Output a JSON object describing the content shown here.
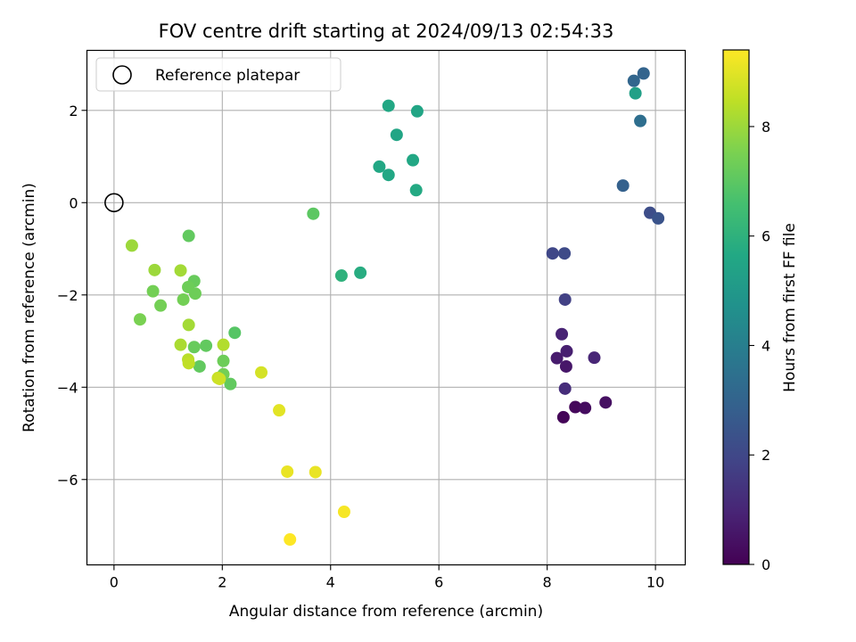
{
  "chart_data": {
    "type": "scatter",
    "title": "FOV centre drift starting at 2024/09/13 02:54:33",
    "xlabel": "Angular distance from reference (arcmin)",
    "ylabel": "Rotation from reference (arcmin)",
    "xlim": [
      -0.5,
      10.55
    ],
    "ylim": [
      -7.85,
      3.3
    ],
    "xticks": [
      0,
      2,
      4,
      6,
      8,
      10
    ],
    "yticks": [
      -6,
      -4,
      -2,
      0,
      2
    ],
    "grid": true,
    "legend": {
      "position": "top-left",
      "entries": [
        "Reference platepar"
      ]
    },
    "reference_point": {
      "x": 0,
      "y": 0,
      "label": "Reference platepar"
    },
    "colorbar": {
      "label": "Hours from first FF file",
      "range": [
        0,
        9.4
      ],
      "ticks": [
        0,
        2,
        4,
        6,
        8
      ],
      "colormap": "viridis"
    },
    "points": [
      {
        "x": 8.3,
        "y": -4.65,
        "h": 0.1
      },
      {
        "x": 8.52,
        "y": -4.43,
        "h": 0.2
      },
      {
        "x": 8.7,
        "y": -4.45,
        "h": 0.3
      },
      {
        "x": 9.08,
        "y": -4.33,
        "h": 0.4
      },
      {
        "x": 8.33,
        "y": -4.03,
        "h": 1.2
      },
      {
        "x": 8.35,
        "y": -3.55,
        "h": 0.6
      },
      {
        "x": 8.18,
        "y": -3.37,
        "h": 0.7
      },
      {
        "x": 8.36,
        "y": -3.22,
        "h": 0.8
      },
      {
        "x": 8.27,
        "y": -2.85,
        "h": 0.9
      },
      {
        "x": 8.87,
        "y": -3.36,
        "h": 1.0
      },
      {
        "x": 8.33,
        "y": -2.1,
        "h": 1.8
      },
      {
        "x": 8.1,
        "y": -1.1,
        "h": 2.0
      },
      {
        "x": 8.32,
        "y": -1.1,
        "h": 2.1
      },
      {
        "x": 9.9,
        "y": -0.22,
        "h": 2.2
      },
      {
        "x": 10.05,
        "y": -0.34,
        "h": 2.4
      },
      {
        "x": 9.4,
        "y": 0.37,
        "h": 2.9
      },
      {
        "x": 9.72,
        "y": 1.77,
        "h": 3.4
      },
      {
        "x": 9.6,
        "y": 2.64,
        "h": 3.1
      },
      {
        "x": 9.78,
        "y": 2.8,
        "h": 3.0
      },
      {
        "x": 9.63,
        "y": 2.37,
        "h": 5.3
      },
      {
        "x": 5.6,
        "y": 1.98,
        "h": 5.5
      },
      {
        "x": 5.07,
        "y": 2.1,
        "h": 5.6
      },
      {
        "x": 5.22,
        "y": 1.47,
        "h": 5.5
      },
      {
        "x": 4.9,
        "y": 0.78,
        "h": 5.6
      },
      {
        "x": 5.07,
        "y": 0.6,
        "h": 5.6
      },
      {
        "x": 5.52,
        "y": 0.92,
        "h": 5.6
      },
      {
        "x": 5.58,
        "y": 0.27,
        "h": 5.7
      },
      {
        "x": 4.55,
        "y": -1.52,
        "h": 5.8
      },
      {
        "x": 4.2,
        "y": -1.58,
        "h": 6.0
      },
      {
        "x": 3.68,
        "y": -0.24,
        "h": 7.0
      },
      {
        "x": 1.38,
        "y": -0.72,
        "h": 7.1
      },
      {
        "x": 1.48,
        "y": -1.7,
        "h": 7.2
      },
      {
        "x": 1.37,
        "y": -1.83,
        "h": 7.3
      },
      {
        "x": 1.5,
        "y": -1.97,
        "h": 7.3
      },
      {
        "x": 1.28,
        "y": -2.1,
        "h": 7.4
      },
      {
        "x": 0.72,
        "y": -1.92,
        "h": 7.4
      },
      {
        "x": 0.86,
        "y": -2.23,
        "h": 7.4
      },
      {
        "x": 0.48,
        "y": -2.53,
        "h": 7.5
      },
      {
        "x": 2.23,
        "y": -2.82,
        "h": 6.9
      },
      {
        "x": 1.7,
        "y": -3.1,
        "h": 7.1
      },
      {
        "x": 1.48,
        "y": -3.13,
        "h": 7.2
      },
      {
        "x": 2.02,
        "y": -3.43,
        "h": 7.3
      },
      {
        "x": 1.58,
        "y": -3.55,
        "h": 7.1
      },
      {
        "x": 2.02,
        "y": -3.72,
        "h": 7.4
      },
      {
        "x": 2.15,
        "y": -3.93,
        "h": 7.1
      },
      {
        "x": 0.33,
        "y": -0.93,
        "h": 8.0
      },
      {
        "x": 0.75,
        "y": -1.46,
        "h": 8.0
      },
      {
        "x": 1.23,
        "y": -1.47,
        "h": 8.1
      },
      {
        "x": 1.38,
        "y": -2.65,
        "h": 8.1
      },
      {
        "x": 1.23,
        "y": -3.08,
        "h": 8.2
      },
      {
        "x": 2.02,
        "y": -3.08,
        "h": 8.3
      },
      {
        "x": 1.37,
        "y": -3.4,
        "h": 8.4
      },
      {
        "x": 1.38,
        "y": -3.48,
        "h": 8.5
      },
      {
        "x": 1.92,
        "y": -3.8,
        "h": 8.6
      },
      {
        "x": 1.95,
        "y": -3.82,
        "h": 8.7
      },
      {
        "x": 2.72,
        "y": -3.68,
        "h": 8.8
      },
      {
        "x": 3.05,
        "y": -4.5,
        "h": 9.0
      },
      {
        "x": 3.2,
        "y": -5.83,
        "h": 9.1
      },
      {
        "x": 3.72,
        "y": -5.84,
        "h": 9.1
      },
      {
        "x": 4.25,
        "y": -6.7,
        "h": 9.3
      },
      {
        "x": 3.25,
        "y": -7.3,
        "h": 9.4
      }
    ]
  }
}
